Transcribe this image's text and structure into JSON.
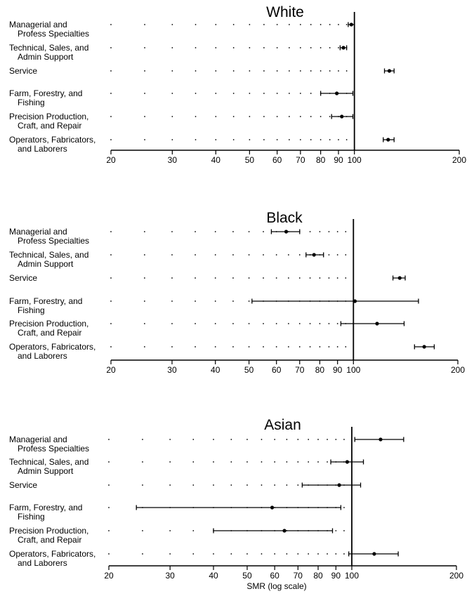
{
  "chart_data": [
    {
      "type": "errorbar",
      "title": "White",
      "xscale": "log",
      "xlim": [
        20,
        200
      ],
      "reference_line": 100,
      "xticks": [
        20,
        30,
        40,
        50,
        60,
        70,
        80,
        90,
        100,
        200
      ],
      "categories": [
        [
          "Managerial and",
          "Profess Specialties"
        ],
        [
          "Technical, Sales, and",
          "Admin Support"
        ],
        [
          "Service"
        ],
        [
          "Farm, Forestry, and",
          "Fishing"
        ],
        [
          "Precision Production,",
          "Craft, and Repair"
        ],
        [
          "Operators, Fabricators,",
          "and Laborers"
        ]
      ],
      "values": [
        98,
        93,
        126,
        89,
        92,
        125
      ],
      "lower": [
        96,
        91,
        122,
        80,
        86,
        121
      ],
      "upper": [
        100,
        95,
        130,
        99,
        99,
        130
      ]
    },
    {
      "type": "errorbar",
      "title": "Black",
      "xscale": "log",
      "xlim": [
        20,
        200
      ],
      "reference_line": 100,
      "xticks": [
        20,
        30,
        40,
        50,
        60,
        70,
        80,
        90,
        100,
        200
      ],
      "categories": [
        [
          "Managerial and",
          "Profess Specialties"
        ],
        [
          "Technical, Sales, and",
          "Admin Support"
        ],
        [
          "Service"
        ],
        [
          "Farm, Forestry, and",
          "Fishing"
        ],
        [
          "Precision Production,",
          "Craft, and Repair"
        ],
        [
          "Operators, Fabricators,",
          "and Laborers"
        ]
      ],
      "values": [
        64,
        77,
        136,
        101,
        117,
        160
      ],
      "lower": [
        58,
        73,
        130,
        51,
        92,
        150
      ],
      "upper": [
        70,
        82,
        141,
        154,
        140,
        171
      ]
    },
    {
      "type": "errorbar",
      "title": "Asian",
      "xscale": "log",
      "xlim": [
        20,
        200
      ],
      "reference_line": 100,
      "xticks": [
        20,
        30,
        40,
        50,
        60,
        70,
        80,
        90,
        100,
        200
      ],
      "xlabel": "SMR (log scale)",
      "categories": [
        [
          "Managerial and",
          "Profess Specialties"
        ],
        [
          "Technical, Sales, and",
          "Admin Support"
        ],
        [
          "Service"
        ],
        [
          "Farm, Forestry, and",
          "Fishing"
        ],
        [
          "Precision Production,",
          "Craft, and Repair"
        ],
        [
          "Operators, Fabricators,",
          "and Laborers"
        ]
      ],
      "values": [
        121,
        97,
        92,
        59,
        64,
        116
      ],
      "lower": [
        102,
        87,
        72,
        24,
        40,
        98
      ],
      "upper": [
        141,
        108,
        106,
        93,
        88,
        136
      ]
    }
  ]
}
